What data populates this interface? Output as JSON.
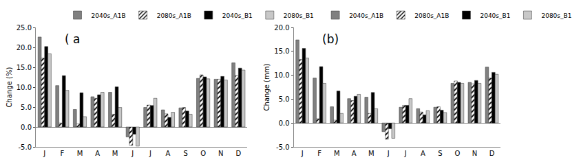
{
  "chart_data": [
    {
      "type": "bar",
      "annotations": [
        "( a"
      ],
      "y_label": "Change (%)",
      "categories": [
        "J",
        "F",
        "M",
        "A",
        "M",
        "J",
        "J",
        "A",
        "S",
        "O",
        "N",
        "D"
      ],
      "series": [
        {
          "name": "2040s_A1B",
          "color": "#808080",
          "values": [
            22.6,
            10.4,
            4.4,
            7.6,
            8.7,
            -2.5,
            4.9,
            4.3,
            4.8,
            12.2,
            12.0,
            16.1
          ]
        },
        {
          "name": "2080s_A1B",
          "color": "#ffffff",
          "marker": "hatch",
          "values": [
            17.3,
            1.0,
            0.8,
            7.2,
            3.2,
            -4.6,
            5.5,
            3.3,
            4.9,
            13.1,
            12.0,
            12.9
          ]
        },
        {
          "name": "2040s_B1",
          "color": "#000000",
          "values": [
            20.2,
            12.9,
            8.6,
            8.1,
            10.1,
            -1.8,
            5.4,
            2.4,
            4.0,
            12.6,
            12.7,
            14.8
          ]
        },
        {
          "name": "2080s_B1",
          "color": "#c8c8c8",
          "values": [
            18.4,
            9.2,
            2.6,
            8.7,
            4.9,
            -4.8,
            7.2,
            3.7,
            3.2,
            12.1,
            11.8,
            14.3
          ]
        }
      ],
      "ylim": [
        -5,
        25
      ],
      "yticks": [
        {
          "value": -5,
          "label": "-5.0"
        },
        {
          "value": 0,
          "label": "0.0"
        },
        {
          "value": 5,
          "label": "5.0"
        },
        {
          "value": 10,
          "label": "10.0"
        },
        {
          "value": 15,
          "label": "15.0"
        },
        {
          "value": 20,
          "label": "20.0"
        },
        {
          "value": 25,
          "label": "25.0"
        }
      ],
      "grid": false,
      "legend": "top"
    },
    {
      "type": "bar",
      "annotations": [
        "(b)"
      ],
      "y_label": "Change (mm)",
      "categories": [
        "J",
        "F",
        "M",
        "A",
        "M",
        "J",
        "J",
        "A",
        "S",
        "O",
        "N",
        "D"
      ],
      "series": [
        {
          "name": "2040s_A1B",
          "color": "#808080",
          "values": [
            17.4,
            9.4,
            3.4,
            5.1,
            5.4,
            -1.8,
            3.3,
            3.0,
            3.3,
            8.3,
            8.5,
            11.7
          ]
        },
        {
          "name": "2080s_A1B",
          "color": "#ffffff",
          "marker": "hatch",
          "values": [
            13.3,
            0.9,
            0.6,
            4.7,
            2.0,
            -3.4,
            3.7,
            2.3,
            3.4,
            8.8,
            8.2,
            9.4
          ]
        },
        {
          "name": "2040s_B1",
          "color": "#000000",
          "values": [
            15.6,
            11.8,
            6.7,
            5.6,
            6.4,
            -1.2,
            3.7,
            1.7,
            2.7,
            8.5,
            8.9,
            10.6
          ]
        },
        {
          "name": "2080s_B1",
          "color": "#c8c8c8",
          "values": [
            13.6,
            8.3,
            2.0,
            6.0,
            3.0,
            -3.2,
            5.1,
            2.6,
            2.2,
            8.3,
            8.3,
            10.2
          ]
        }
      ],
      "ylim": [
        -5,
        20
      ],
      "yticks": [
        {
          "value": -5,
          "label": "-5.0"
        },
        {
          "value": 0,
          "label": "0.0"
        },
        {
          "value": 5,
          "label": "5.0"
        },
        {
          "value": 10,
          "label": "10.0"
        },
        {
          "value": 15,
          "label": "15.0"
        },
        {
          "value": 20,
          "label": "20.0"
        }
      ],
      "grid": false,
      "legend": "top"
    }
  ]
}
